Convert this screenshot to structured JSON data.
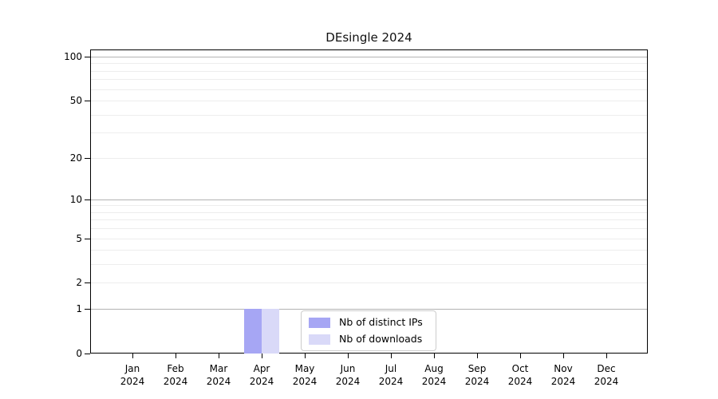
{
  "chart_data": {
    "type": "bar",
    "title": "DEsingle 2024",
    "categories": [
      "Jan 2024",
      "Feb 2024",
      "Mar 2024",
      "Apr 2024",
      "May 2024",
      "Jun 2024",
      "Jul 2024",
      "Aug 2024",
      "Sep 2024",
      "Oct 2024",
      "Nov 2024",
      "Dec 2024"
    ],
    "series": [
      {
        "name": "Nb of distinct IPs",
        "color": "#a6a6f4",
        "values": [
          0,
          0,
          0,
          1,
          0,
          0,
          0,
          0,
          0,
          0,
          0,
          0
        ]
      },
      {
        "name": "Nb of downloads",
        "color": "#d9d9f8",
        "values": [
          0,
          0,
          0,
          1,
          0,
          0,
          0,
          0,
          0,
          0,
          0,
          0
        ]
      }
    ],
    "xlabel": "",
    "ylabel": "",
    "yscale": "log1p",
    "ylim": [
      0,
      100
    ],
    "y_ticks": [
      0,
      1,
      2,
      5,
      10,
      20,
      50,
      100
    ],
    "y_gridlines_major": [
      1,
      10,
      100
    ],
    "y_gridlines_minor": [
      2,
      3,
      4,
      5,
      6,
      7,
      8,
      9,
      20,
      30,
      40,
      50,
      60,
      70,
      80,
      90
    ],
    "grid": true,
    "legend_position": "lower center"
  },
  "colors": {
    "grid_major": "#b3b3b3",
    "grid_minor": "#ededed",
    "axis": "#000000",
    "legend_border": "#cccccc"
  }
}
